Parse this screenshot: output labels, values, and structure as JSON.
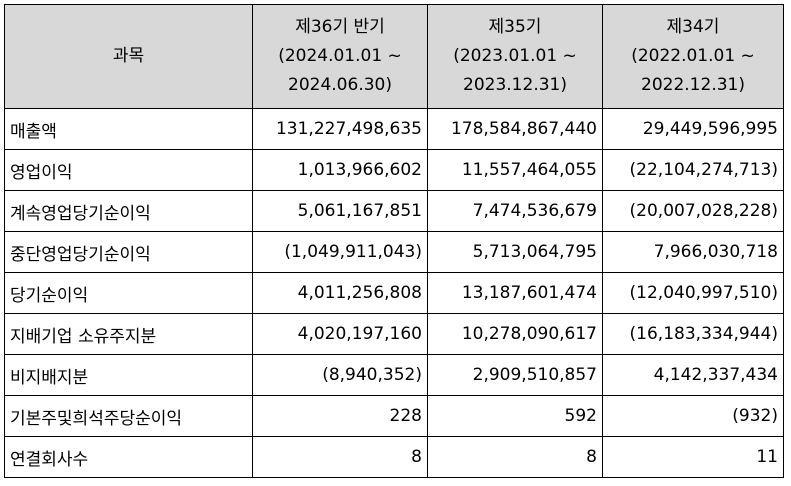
{
  "table": {
    "header": {
      "subject": "과목",
      "periods": [
        {
          "name": "제36기 반기",
          "range_start": "(2024.01.01 ~",
          "range_end": "2024.06.30)"
        },
        {
          "name": "제35기",
          "range_start": "(2023.01.01 ~",
          "range_end": "2023.12.31)"
        },
        {
          "name": "제34기",
          "range_start": "(2022.01.01 ~",
          "range_end": "2022.12.31)"
        }
      ]
    },
    "rows": [
      {
        "label": "매출액",
        "values": [
          "131,227,498,635",
          "178,584,867,440",
          "29,449,596,995"
        ]
      },
      {
        "label": "영업이익",
        "values": [
          "1,013,966,602",
          "11,557,464,055",
          "(22,104,274,713)"
        ]
      },
      {
        "label": "계속영업당기순이익",
        "values": [
          "5,061,167,851",
          "7,474,536,679",
          "(20,007,028,228)"
        ]
      },
      {
        "label": "중단영업당기순이익",
        "values": [
          "(1,049,911,043)",
          "5,713,064,795",
          "7,966,030,718"
        ]
      },
      {
        "label": "당기순이익",
        "values": [
          "4,011,256,808",
          "13,187,601,474",
          "(12,040,997,510)"
        ]
      },
      {
        "label": "지배기업 소유주지분",
        "values": [
          "4,020,197,160",
          "10,278,090,617",
          "(16,183,334,944)"
        ]
      },
      {
        "label": "비지배지분",
        "values": [
          "(8,940,352)",
          "2,909,510,857",
          "4,142,337,434"
        ]
      },
      {
        "label": "기본주및희석주당순이익",
        "values": [
          "228",
          "592",
          "(932)"
        ]
      },
      {
        "label": "연결회사수",
        "values": [
          "8",
          "8",
          "11"
        ]
      }
    ]
  }
}
